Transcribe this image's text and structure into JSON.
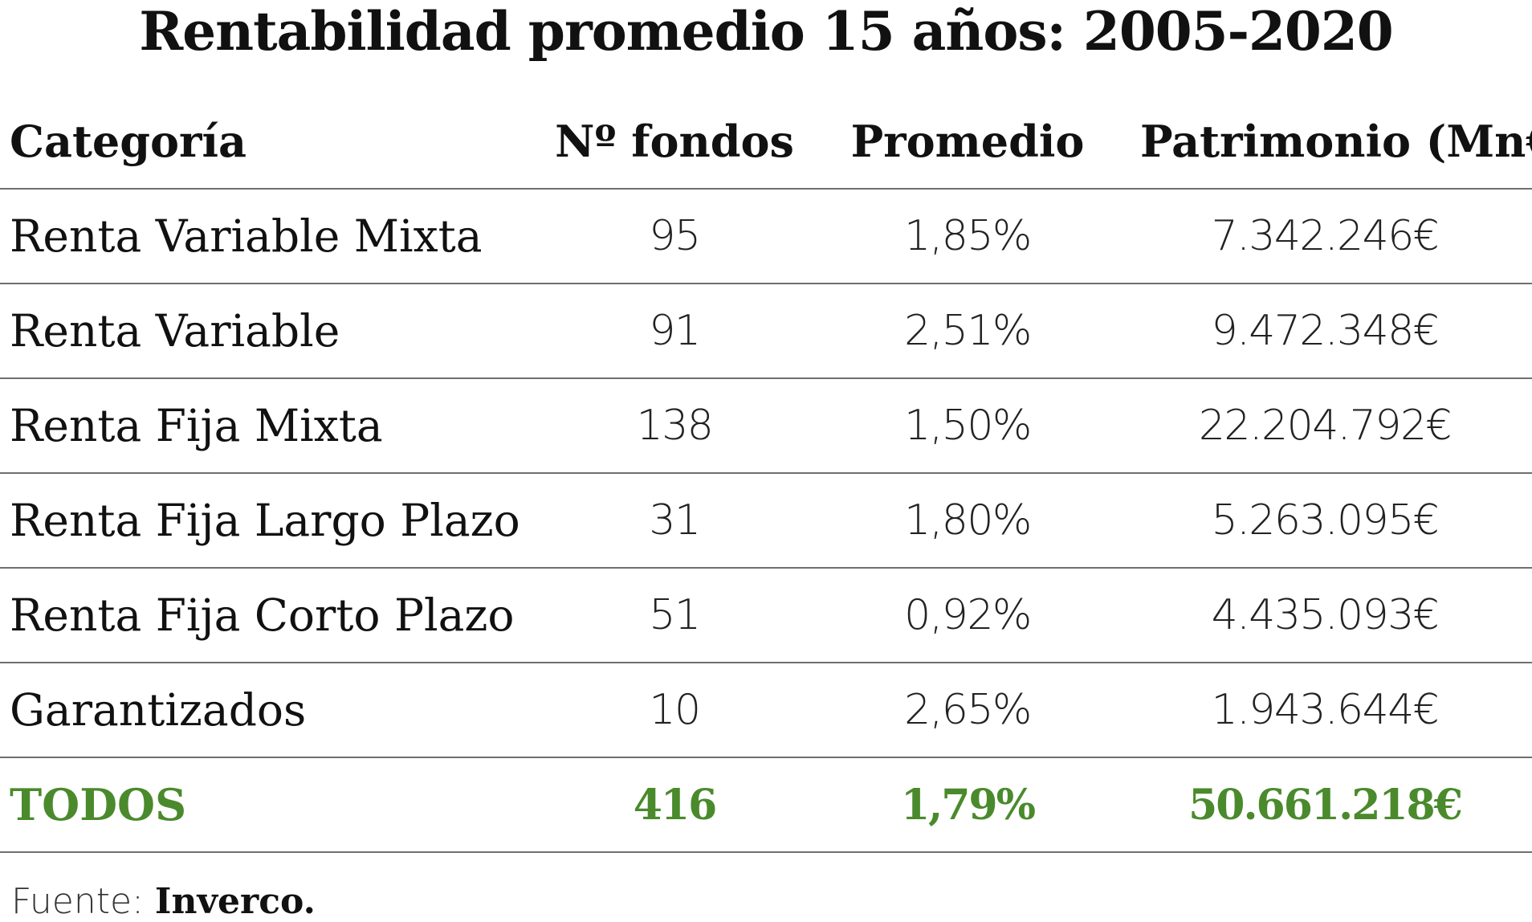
{
  "chart_data": {
    "type": "table",
    "title": "Rentabilidad promedio 15 años: 2005-2020",
    "columns": [
      "Categoría",
      "Nº fondos",
      "Promedio",
      "Patrimonio (Mn€)"
    ],
    "rows": [
      {
        "categoria": "Renta Variable Mixta",
        "fondos": "95",
        "promedio": "1,85%",
        "patrimonio": "7.342.246€"
      },
      {
        "categoria": "Renta Variable",
        "fondos": "91",
        "promedio": "2,51%",
        "patrimonio": "9.472.348€"
      },
      {
        "categoria": "Renta Fija Mixta",
        "fondos": "138",
        "promedio": "1,50%",
        "patrimonio": "22.204.792€"
      },
      {
        "categoria": "Renta Fija Largo Plazo",
        "fondos": "31",
        "promedio": "1,80%",
        "patrimonio": "5.263.095€"
      },
      {
        "categoria": "Renta Fija Corto Plazo",
        "fondos": "51",
        "promedio": "0,92%",
        "patrimonio": "4.435.093€"
      },
      {
        "categoria": "Garantizados",
        "fondos": "10",
        "promedio": "2,65%",
        "patrimonio": "1.943.644€"
      }
    ],
    "total": {
      "categoria": "TODOS",
      "fondos": "416",
      "promedio": "1,79%",
      "patrimonio": "50.661.218€"
    },
    "total_color": "#4a8a2c"
  },
  "source": {
    "label": "Fuente: ",
    "value": "Inverco."
  }
}
